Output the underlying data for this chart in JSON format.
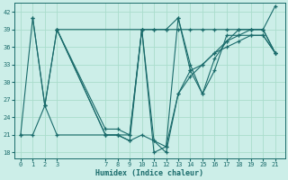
{
  "xlabel": "Humidex (Indice chaleur)",
  "bg_color": "#cceee8",
  "line_color": "#1a6b6b",
  "grid_color": "#aaddcc",
  "xlim": [
    -0.5,
    21.8
  ],
  "ylim": [
    17,
    43.5
  ],
  "xticks": [
    0,
    1,
    2,
    3,
    7,
    8,
    9,
    10,
    11,
    12,
    13,
    14,
    15,
    16,
    17,
    18,
    19,
    20,
    21
  ],
  "yticks": [
    18,
    21,
    24,
    27,
    30,
    33,
    36,
    39,
    42
  ],
  "lines": [
    {
      "x": [
        0,
        1,
        2,
        3,
        7,
        8,
        9,
        10,
        11,
        12,
        13,
        14,
        15,
        16,
        17,
        18,
        19,
        20,
        21
      ],
      "y": [
        21,
        41,
        26,
        39,
        21,
        21,
        21,
        39,
        39,
        39,
        39,
        39,
        39,
        39,
        39,
        39,
        39,
        39,
        35
      ]
    },
    {
      "x": [
        1,
        2,
        3,
        7,
        8,
        9,
        10,
        11,
        12,
        13,
        14,
        15,
        16,
        17,
        18,
        19,
        20,
        21
      ],
      "y": [
        41,
        26,
        39,
        21,
        21,
        20,
        39,
        18,
        19,
        41,
        32,
        28,
        34,
        37,
        38,
        39,
        39,
        43
      ]
    },
    {
      "x": [
        0,
        1,
        2,
        3,
        7,
        8,
        9,
        10,
        11,
        12,
        13,
        14,
        15,
        16,
        17,
        18,
        19,
        20,
        21
      ],
      "y": [
        21,
        21,
        26,
        21,
        21,
        21,
        20,
        21,
        20,
        19,
        28,
        31,
        33,
        35,
        36,
        37,
        38,
        38,
        35
      ]
    },
    {
      "x": [
        3,
        10,
        11,
        12,
        13,
        14,
        15,
        16,
        17,
        18,
        19,
        20,
        21
      ],
      "y": [
        39,
        39,
        39,
        39,
        41,
        33,
        28,
        32,
        38,
        38,
        38,
        38,
        35
      ]
    },
    {
      "x": [
        3,
        7,
        8,
        9,
        10,
        11,
        12,
        13,
        14,
        15,
        16,
        17,
        18,
        19,
        20,
        21
      ],
      "y": [
        39,
        22,
        22,
        21,
        39,
        20,
        18,
        28,
        32,
        33,
        35,
        37,
        39,
        39,
        39,
        35
      ]
    }
  ]
}
